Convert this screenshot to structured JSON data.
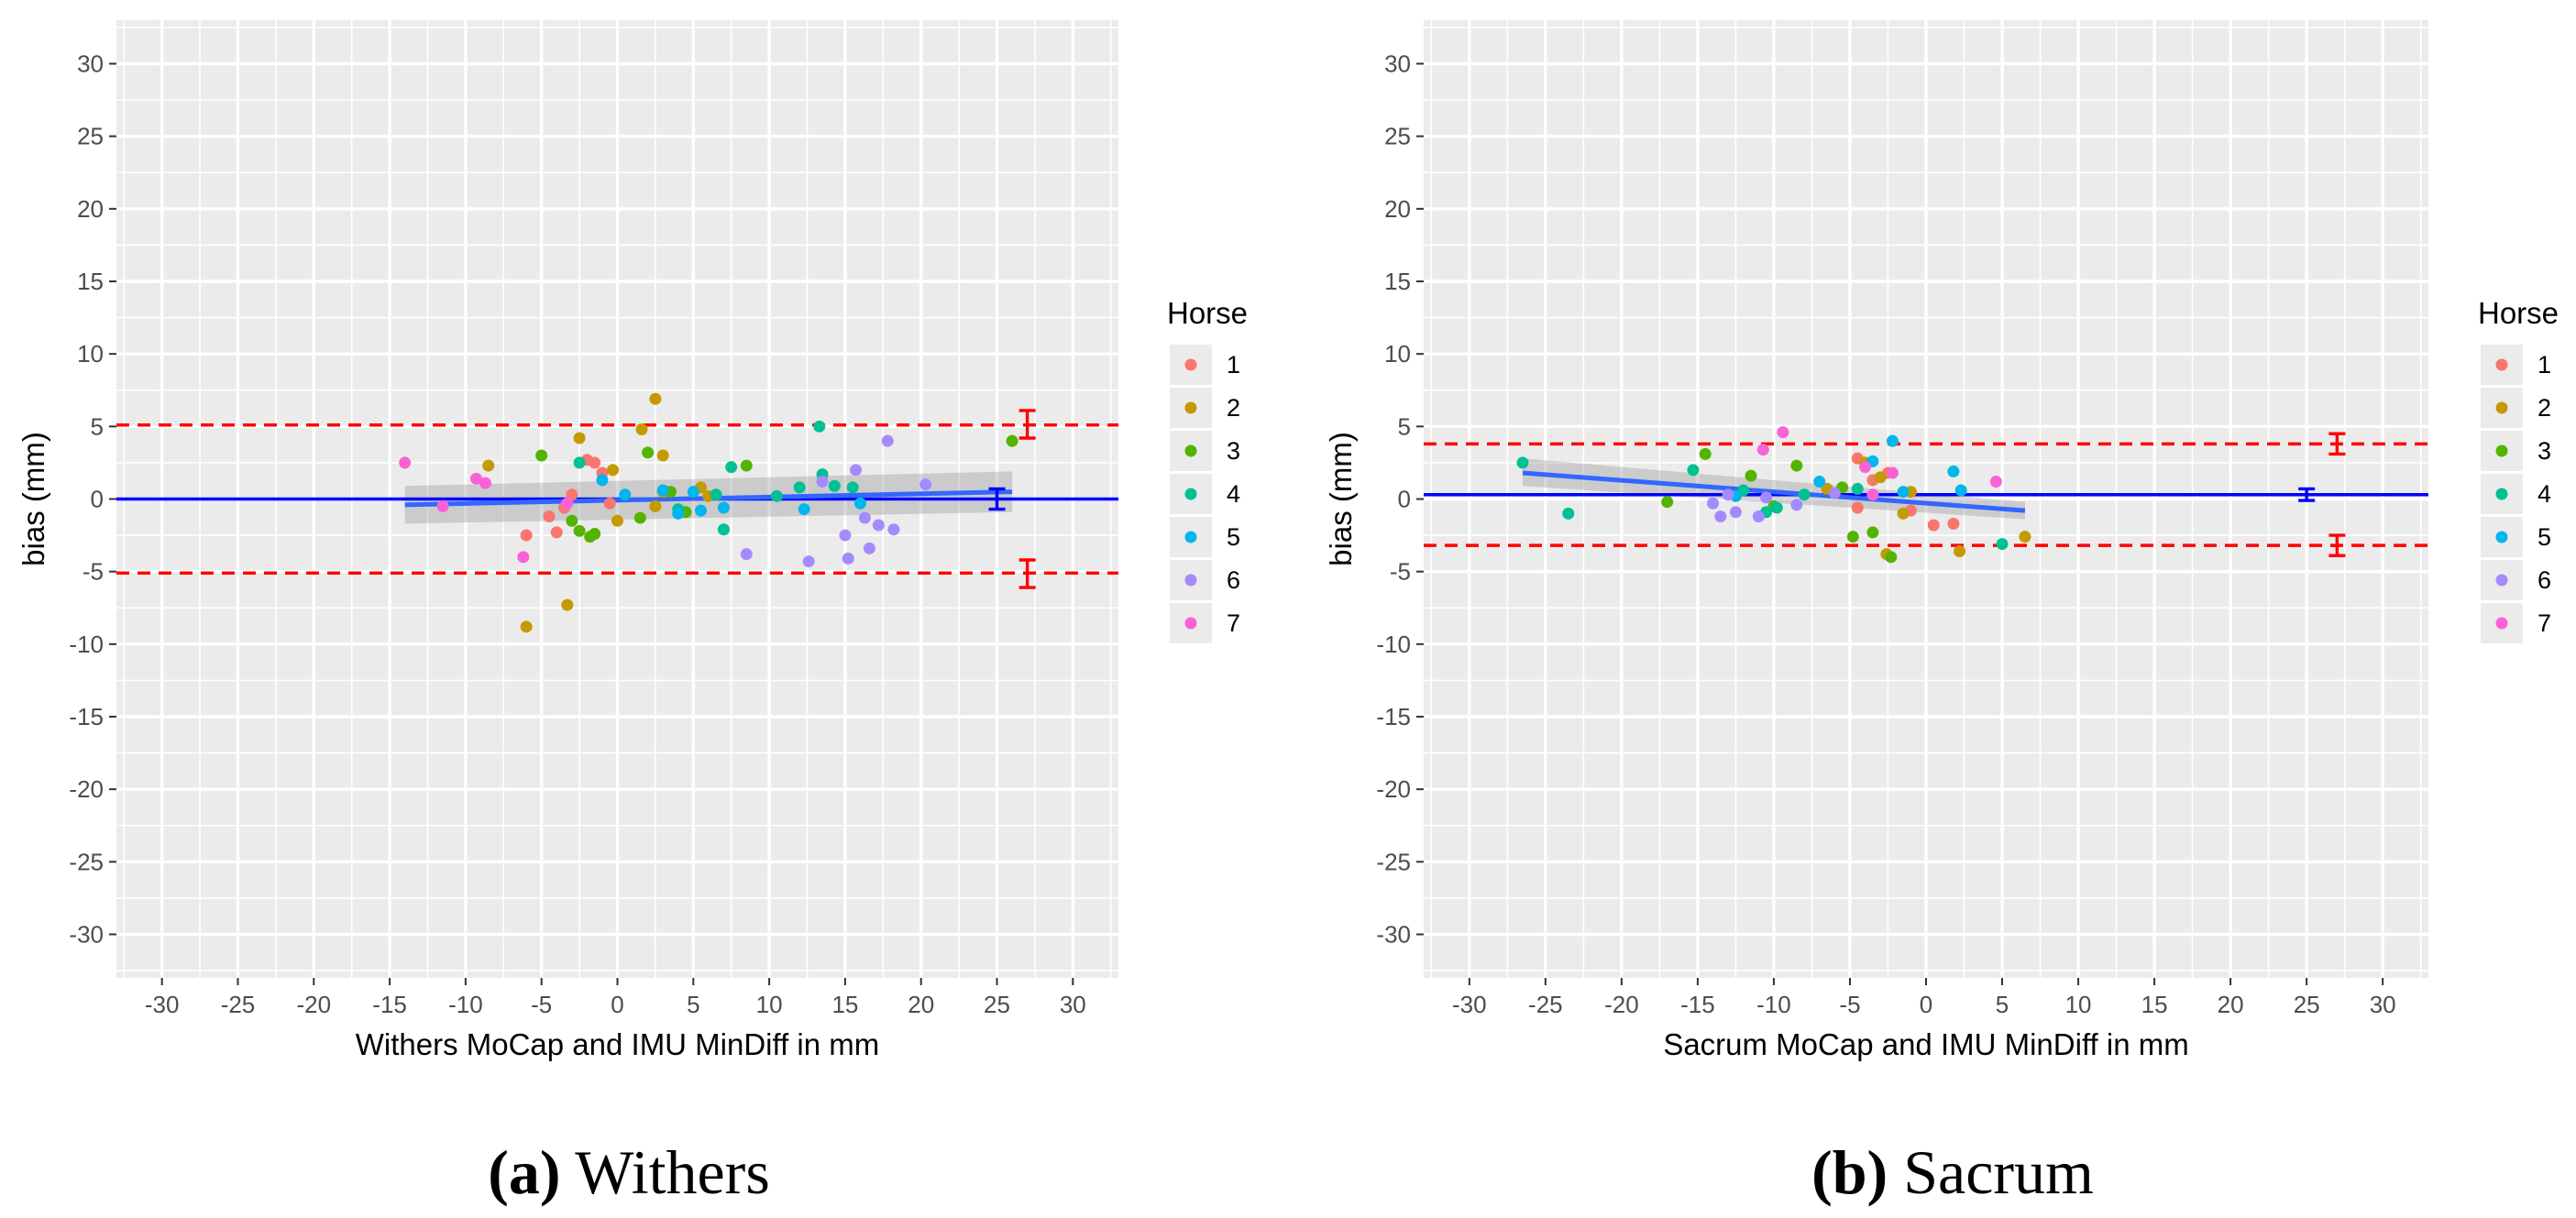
{
  "colors": {
    "panel_bg": "#EBEBEB",
    "grid": "#FFFFFF",
    "mean_line": "#0000FF",
    "loa_line": "#FF0000",
    "fit_line": "#3366FF",
    "ribbon": "#999999",
    "horse": [
      "#F8766D",
      "#C49A00",
      "#53B400",
      "#00C094",
      "#00B6EB",
      "#A58AFF",
      "#FB61D7"
    ]
  },
  "chart_data": [
    {
      "type": "scatter",
      "id": "withers",
      "caption_letter": "(a)",
      "caption_word": " Withers",
      "xlabel": "Withers MoCap and IMU MinDiff in mm",
      "ylabel": "bias (mm)",
      "xlim": [
        -33,
        33
      ],
      "ylim": [
        -33,
        33
      ],
      "xticks": [
        -30,
        -25,
        -20,
        -15,
        -10,
        -5,
        0,
        5,
        10,
        15,
        20,
        25,
        30
      ],
      "yticks": [
        30,
        25,
        20,
        15,
        10,
        5,
        0,
        -5,
        -10,
        -15,
        -20,
        -25,
        -30
      ],
      "tick_labels_x": [
        "-30",
        "-25",
        "-20",
        "-15",
        "-10",
        "-5",
        "0",
        "5",
        "10",
        "15",
        "20",
        "25",
        "30"
      ],
      "tick_labels_y": [
        "30",
        "25",
        "20",
        "15",
        "10",
        "5",
        "0",
        "-5",
        "-10",
        "-15",
        "-20",
        "-25",
        "-30"
      ],
      "mean_bias": 0.0,
      "mean_ci": [
        -0.7,
        0.7
      ],
      "loa_upper": 5.1,
      "loa_upper_ci": [
        4.2,
        6.1
      ],
      "loa_lower": -5.1,
      "loa_lower_ci": [
        -6.1,
        -4.2
      ],
      "errorbar_x_mean": 25,
      "errorbar_x_loa": 27,
      "fit_x": [
        -14,
        26
      ],
      "fit_y": [
        -0.4,
        0.5
      ],
      "ribbon_upper": [
        0.9,
        1.9
      ],
      "ribbon_lower": [
        -1.7,
        -0.9
      ],
      "legend_title": "Horse",
      "legend_labels": [
        "1",
        "2",
        "3",
        "4",
        "5",
        "6",
        "7"
      ],
      "points": [
        {
          "x": -6,
          "y": -2.5,
          "horse": 1
        },
        {
          "x": -4.5,
          "y": -1.2,
          "horse": 1
        },
        {
          "x": -4,
          "y": -2.3,
          "horse": 1
        },
        {
          "x": -3,
          "y": 0.3,
          "horse": 1
        },
        {
          "x": -1.5,
          "y": 2.5,
          "horse": 1
        },
        {
          "x": -2,
          "y": 2.7,
          "horse": 1
        },
        {
          "x": -1,
          "y": 1.8,
          "horse": 1
        },
        {
          "x": -3.5,
          "y": -0.6,
          "horse": 1
        },
        {
          "x": -0.5,
          "y": -0.3,
          "horse": 1
        },
        {
          "x": -6,
          "y": -8.8,
          "horse": 2
        },
        {
          "x": -3.3,
          "y": -7.3,
          "horse": 2
        },
        {
          "x": 2.5,
          "y": 6.9,
          "horse": 2
        },
        {
          "x": 1.6,
          "y": 4.8,
          "horse": 2
        },
        {
          "x": -2.5,
          "y": 4.2,
          "horse": 2
        },
        {
          "x": 3,
          "y": 3,
          "horse": 2
        },
        {
          "x": -8.5,
          "y": 2.3,
          "horse": 2
        },
        {
          "x": -0.3,
          "y": 2,
          "horse": 2
        },
        {
          "x": 3,
          "y": 0.5,
          "horse": 2
        },
        {
          "x": 0,
          "y": -1.5,
          "horse": 2
        },
        {
          "x": 5.5,
          "y": 0.8,
          "horse": 2
        },
        {
          "x": 6,
          "y": 0.2,
          "horse": 2
        },
        {
          "x": 2.5,
          "y": -0.5,
          "horse": 2
        },
        {
          "x": -5,
          "y": 3,
          "horse": 3
        },
        {
          "x": -3,
          "y": -1.5,
          "horse": 3
        },
        {
          "x": -2.5,
          "y": -2.2,
          "horse": 3
        },
        {
          "x": -1.5,
          "y": -2.4,
          "horse": 3
        },
        {
          "x": -1.8,
          "y": -2.6,
          "horse": 3
        },
        {
          "x": 2,
          "y": 3.2,
          "horse": 3
        },
        {
          "x": 1.5,
          "y": -1.3,
          "horse": 3
        },
        {
          "x": 8.5,
          "y": 2.3,
          "horse": 3
        },
        {
          "x": 26,
          "y": 4,
          "horse": 3
        },
        {
          "x": 4.5,
          "y": -0.9,
          "horse": 3
        },
        {
          "x": 3.5,
          "y": 0.5,
          "horse": 3
        },
        {
          "x": 13.3,
          "y": 5,
          "horse": 4
        },
        {
          "x": 13.5,
          "y": 1.7,
          "horse": 4
        },
        {
          "x": 7,
          "y": -2.1,
          "horse": 4
        },
        {
          "x": 7.5,
          "y": 2.2,
          "horse": 4
        },
        {
          "x": 15.5,
          "y": 0.8,
          "horse": 4
        },
        {
          "x": -2.5,
          "y": 2.5,
          "horse": 4
        },
        {
          "x": 6.5,
          "y": 0.3,
          "horse": 4
        },
        {
          "x": 12,
          "y": 0.8,
          "horse": 4
        },
        {
          "x": 10.5,
          "y": 0.2,
          "horse": 4
        },
        {
          "x": 4,
          "y": -0.7,
          "horse": 4
        },
        {
          "x": 14.3,
          "y": 0.9,
          "horse": 4
        },
        {
          "x": -1,
          "y": 1.3,
          "horse": 5
        },
        {
          "x": 0.5,
          "y": 0.3,
          "horse": 5
        },
        {
          "x": 4,
          "y": -1,
          "horse": 5
        },
        {
          "x": 5.5,
          "y": -0.8,
          "horse": 5
        },
        {
          "x": 12.3,
          "y": -0.7,
          "horse": 5
        },
        {
          "x": 16,
          "y": -0.3,
          "horse": 5
        },
        {
          "x": 7,
          "y": -0.6,
          "horse": 5
        },
        {
          "x": 3,
          "y": 0.6,
          "horse": 5
        },
        {
          "x": 5,
          "y": 0.5,
          "horse": 5
        },
        {
          "x": 17.8,
          "y": 4,
          "horse": 6
        },
        {
          "x": 15.7,
          "y": 2,
          "horse": 6
        },
        {
          "x": 12.6,
          "y": -4.3,
          "horse": 6
        },
        {
          "x": 15,
          "y": -2.5,
          "horse": 6
        },
        {
          "x": 16.3,
          "y": -1.3,
          "horse": 6
        },
        {
          "x": 17.2,
          "y": -1.8,
          "horse": 6
        },
        {
          "x": 18.2,
          "y": -2.1,
          "horse": 6
        },
        {
          "x": 16.6,
          "y": -3.4,
          "horse": 6
        },
        {
          "x": 8.5,
          "y": -3.8,
          "horse": 6
        },
        {
          "x": 15.2,
          "y": -4.1,
          "horse": 6
        },
        {
          "x": 20.3,
          "y": 1,
          "horse": 6
        },
        {
          "x": 13.5,
          "y": 1.2,
          "horse": 6
        },
        {
          "x": -14,
          "y": 2.5,
          "horse": 7
        },
        {
          "x": -9.3,
          "y": 1.4,
          "horse": 7
        },
        {
          "x": -8.7,
          "y": 1.1,
          "horse": 7
        },
        {
          "x": -11.5,
          "y": -0.5,
          "horse": 7
        },
        {
          "x": -6.2,
          "y": -4,
          "horse": 7
        },
        {
          "x": -3.3,
          "y": -0.3,
          "horse": 7
        }
      ]
    },
    {
      "type": "scatter",
      "id": "sacrum",
      "caption_letter": "(b)",
      "caption_word": " Sacrum",
      "xlabel": "Sacrum MoCap and IMU MinDiff in mm",
      "ylabel": "bias (mm)",
      "xlim": [
        -33,
        33
      ],
      "ylim": [
        -33,
        33
      ],
      "xticks": [
        -30,
        -25,
        -20,
        -15,
        -10,
        -5,
        0,
        5,
        10,
        15,
        20,
        25,
        30
      ],
      "yticks": [
        30,
        25,
        20,
        15,
        10,
        5,
        0,
        -5,
        -10,
        -15,
        -20,
        -25,
        -30
      ],
      "tick_labels_x": [
        "-30",
        "-25",
        "-20",
        "-15",
        "-10",
        "-5",
        "0",
        "5",
        "10",
        "15",
        "20",
        "25",
        "30"
      ],
      "tick_labels_y": [
        "30",
        "25",
        "20",
        "15",
        "10",
        "5",
        "0",
        "-5",
        "-10",
        "-15",
        "-20",
        "-25",
        "-30"
      ],
      "mean_bias": 0.3,
      "mean_ci": [
        -0.1,
        0.7
      ],
      "loa_upper": 3.8,
      "loa_upper_ci": [
        3.1,
        4.5
      ],
      "loa_lower": -3.2,
      "loa_lower_ci": [
        -3.9,
        -2.5
      ],
      "errorbar_x_mean": 25,
      "errorbar_x_loa": 27,
      "fit_x": [
        -26.5,
        6.5
      ],
      "fit_y": [
        1.8,
        -0.8
      ],
      "ribbon_upper": [
        2.8,
        -0.2
      ],
      "ribbon_lower": [
        0.9,
        -1.4
      ],
      "legend_title": "Horse",
      "legend_labels": [
        "1",
        "2",
        "3",
        "4",
        "5",
        "6",
        "7"
      ],
      "points": [
        {
          "x": -4.5,
          "y": 2.8,
          "horse": 1
        },
        {
          "x": -2.5,
          "y": 1.8,
          "horse": 1
        },
        {
          "x": -1,
          "y": -0.8,
          "horse": 1
        },
        {
          "x": 0.5,
          "y": -1.8,
          "horse": 1
        },
        {
          "x": 1.8,
          "y": -1.7,
          "horse": 1
        },
        {
          "x": -3.5,
          "y": 1.3,
          "horse": 1
        },
        {
          "x": -4.5,
          "y": -0.6,
          "horse": 1
        },
        {
          "x": -2.6,
          "y": -3.8,
          "horse": 2
        },
        {
          "x": 2.2,
          "y": -3.6,
          "horse": 2
        },
        {
          "x": 6.5,
          "y": -2.6,
          "horse": 2
        },
        {
          "x": -6.5,
          "y": 0.7,
          "horse": 2
        },
        {
          "x": -4,
          "y": 2.5,
          "horse": 2
        },
        {
          "x": -1,
          "y": 0.5,
          "horse": 2
        },
        {
          "x": -1.5,
          "y": -1,
          "horse": 2
        },
        {
          "x": -3,
          "y": 1.5,
          "horse": 2
        },
        {
          "x": -14.5,
          "y": 3.1,
          "horse": 3
        },
        {
          "x": -11.5,
          "y": 1.6,
          "horse": 3
        },
        {
          "x": -8.5,
          "y": 2.3,
          "horse": 3
        },
        {
          "x": -17,
          "y": -0.2,
          "horse": 3
        },
        {
          "x": -4.8,
          "y": -2.6,
          "horse": 3
        },
        {
          "x": -3.5,
          "y": -2.3,
          "horse": 3
        },
        {
          "x": -2.3,
          "y": -4,
          "horse": 3
        },
        {
          "x": -10,
          "y": -0.5,
          "horse": 3
        },
        {
          "x": -5.5,
          "y": 0.8,
          "horse": 3
        },
        {
          "x": -26.5,
          "y": 2.5,
          "horse": 4
        },
        {
          "x": -23.5,
          "y": -1,
          "horse": 4
        },
        {
          "x": -15.3,
          "y": 2,
          "horse": 4
        },
        {
          "x": -10.5,
          "y": -0.9,
          "horse": 4
        },
        {
          "x": -8,
          "y": 0.3,
          "horse": 4
        },
        {
          "x": 5,
          "y": -3.1,
          "horse": 4
        },
        {
          "x": -4.5,
          "y": 0.7,
          "horse": 4
        },
        {
          "x": -12,
          "y": 0.6,
          "horse": 4
        },
        {
          "x": -9.8,
          "y": -0.6,
          "horse": 4
        },
        {
          "x": -2.2,
          "y": 4,
          "horse": 5
        },
        {
          "x": -3.5,
          "y": 2.6,
          "horse": 5
        },
        {
          "x": 1.8,
          "y": 1.9,
          "horse": 5
        },
        {
          "x": 2.3,
          "y": 0.6,
          "horse": 5
        },
        {
          "x": -7,
          "y": 1.2,
          "horse": 5
        },
        {
          "x": -1.5,
          "y": 0.5,
          "horse": 5
        },
        {
          "x": -12.5,
          "y": 0.2,
          "horse": 5
        },
        {
          "x": -14,
          "y": -0.3,
          "horse": 6
        },
        {
          "x": -13.5,
          "y": -1.2,
          "horse": 6
        },
        {
          "x": -12.5,
          "y": -0.9,
          "horse": 6
        },
        {
          "x": -11,
          "y": -1.2,
          "horse": 6
        },
        {
          "x": -13,
          "y": 0.3,
          "horse": 6
        },
        {
          "x": -10.5,
          "y": 0.1,
          "horse": 6
        },
        {
          "x": -8.5,
          "y": -0.4,
          "horse": 6
        },
        {
          "x": -6,
          "y": 0.4,
          "horse": 6
        },
        {
          "x": -9.4,
          "y": 4.6,
          "horse": 7
        },
        {
          "x": -10.7,
          "y": 3.4,
          "horse": 7
        },
        {
          "x": -4,
          "y": 2.2,
          "horse": 7
        },
        {
          "x": -2.2,
          "y": 1.8,
          "horse": 7
        },
        {
          "x": 4.6,
          "y": 1.2,
          "horse": 7
        },
        {
          "x": -3.5,
          "y": 0.3,
          "horse": 7
        }
      ]
    }
  ]
}
